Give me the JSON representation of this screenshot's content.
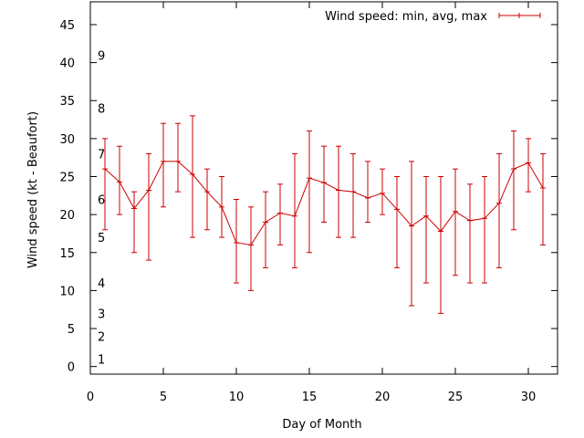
{
  "chart_data": {
    "type": "line",
    "title": "",
    "xlabel": "Day of Month",
    "ylabel": "Wind speed (kt - Beaufort)",
    "xlim": [
      0,
      32
    ],
    "ylim": [
      -1,
      48
    ],
    "x_ticks": [
      0,
      5,
      10,
      15,
      20,
      25,
      30
    ],
    "y_ticks": [
      0,
      5,
      10,
      15,
      20,
      25,
      30,
      35,
      40,
      45
    ],
    "grid": false,
    "legend_position": "top-right",
    "series_color": "#cc0000",
    "series": [
      {
        "name": "Wind speed: min, avg, max",
        "x": [
          1,
          2,
          3,
          4,
          5,
          6,
          7,
          8,
          9,
          10,
          11,
          12,
          13,
          14,
          15,
          16,
          17,
          18,
          19,
          20,
          21,
          22,
          23,
          24,
          25,
          26,
          27,
          28,
          29,
          30,
          31
        ],
        "avg": [
          26,
          24.3,
          20.8,
          23.2,
          27,
          27,
          25.3,
          23,
          21,
          16.3,
          16,
          19,
          20.2,
          19.8,
          24.8,
          24.2,
          23.2,
          23,
          22.2,
          22.8,
          20.7,
          18.5,
          19.8,
          17.8,
          20.4,
          19.2,
          19.5,
          21.5,
          26,
          26.8,
          23.5
        ],
        "min": [
          18,
          20,
          15,
          14,
          21,
          23,
          17,
          18,
          17,
          11,
          10,
          13,
          16,
          13,
          15,
          19,
          17,
          17,
          19,
          20,
          13,
          8,
          11,
          7,
          12,
          11,
          11,
          13,
          18,
          23,
          16
        ],
        "max": [
          30,
          29,
          23,
          28,
          32,
          32,
          33,
          26,
          25,
          22,
          21,
          23,
          24,
          28,
          31,
          29,
          29,
          28,
          27,
          26,
          25,
          27,
          25,
          25,
          26,
          24,
          25,
          28,
          31,
          30,
          28
        ]
      }
    ],
    "beaufort_labels": [
      {
        "label": "1",
        "y": 1
      },
      {
        "label": "2",
        "y": 4
      },
      {
        "label": "3",
        "y": 7
      },
      {
        "label": "4",
        "y": 11
      },
      {
        "label": "5",
        "y": 17
      },
      {
        "label": "6",
        "y": 22
      },
      {
        "label": "7",
        "y": 28
      },
      {
        "label": "8",
        "y": 34
      },
      {
        "label": "9",
        "y": 41
      }
    ]
  }
}
